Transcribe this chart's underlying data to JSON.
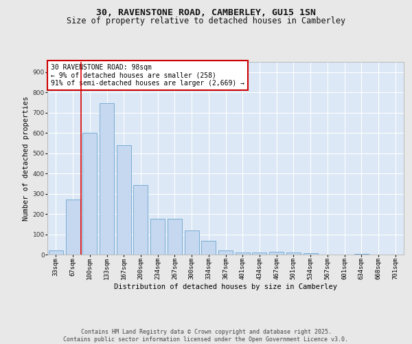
{
  "title_line1": "30, RAVENSTONE ROAD, CAMBERLEY, GU15 1SN",
  "title_line2": "Size of property relative to detached houses in Camberley",
  "xlabel": "Distribution of detached houses by size in Camberley",
  "ylabel": "Number of detached properties",
  "bar_color": "#c5d8f0",
  "bar_edge_color": "#7aadd4",
  "categories": [
    "33sqm",
    "67sqm",
    "100sqm",
    "133sqm",
    "167sqm",
    "200sqm",
    "234sqm",
    "267sqm",
    "300sqm",
    "334sqm",
    "367sqm",
    "401sqm",
    "434sqm",
    "467sqm",
    "501sqm",
    "534sqm",
    "567sqm",
    "601sqm",
    "634sqm",
    "668sqm",
    "701sqm"
  ],
  "values": [
    22,
    270,
    600,
    745,
    538,
    343,
    178,
    178,
    120,
    68,
    22,
    10,
    10,
    15,
    10,
    8,
    0,
    0,
    5,
    0,
    0
  ],
  "ylim": [
    0,
    950
  ],
  "yticks": [
    0,
    100,
    200,
    300,
    400,
    500,
    600,
    700,
    800,
    900
  ],
  "vline_x": 1.5,
  "vline_color": "#dd0000",
  "annotation_text": "30 RAVENSTONE ROAD: 98sqm\n← 9% of detached houses are smaller (258)\n91% of semi-detached houses are larger (2,669) →",
  "annotation_box_color": "#ffffff",
  "annotation_box_edge": "#cc0000",
  "background_color": "#dce8f5",
  "grid_color": "#ffffff",
  "fig_bg_color": "#e8e8e8",
  "footer_text": "Contains HM Land Registry data © Crown copyright and database right 2025.\nContains public sector information licensed under the Open Government Licence v3.0.",
  "title_fontsize": 9.5,
  "subtitle_fontsize": 8.5,
  "axis_label_fontsize": 7.5,
  "tick_fontsize": 6.5,
  "annotation_fontsize": 7,
  "footer_fontsize": 6
}
